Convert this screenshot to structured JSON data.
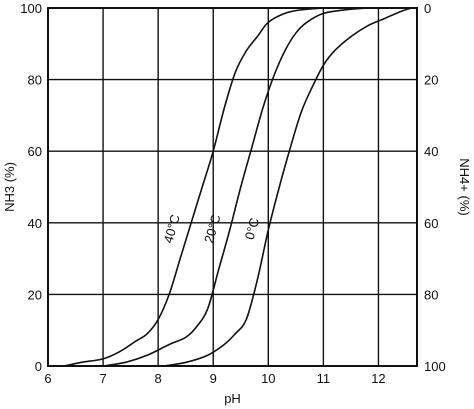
{
  "chart_data": {
    "type": "line",
    "xlabel": "pH",
    "ylabel": "NH3 (%)",
    "ylabel_right": "NH4+ (%)",
    "xlim": [
      6,
      12.7
    ],
    "ylim": [
      0,
      100
    ],
    "x_ticks": [
      6,
      7,
      8,
      9,
      10,
      11,
      12
    ],
    "y_ticks": [
      0,
      20,
      40,
      60,
      80,
      100
    ],
    "y_ticks_right": [
      100,
      80,
      60,
      40,
      20,
      0
    ],
    "grid": true,
    "series": [
      {
        "name": "40°C",
        "x": [
          6.3,
          6.6,
          7.0,
          7.3,
          7.6,
          7.8,
          8.0,
          8.2,
          8.4,
          8.6,
          8.8,
          9.0,
          9.2,
          9.4,
          9.6,
          9.8,
          10.0,
          10.3,
          10.6,
          11.0
        ],
        "y": [
          0,
          1,
          2,
          4,
          7,
          9,
          13,
          20,
          30,
          40,
          50,
          60,
          72,
          82,
          88,
          92,
          96,
          98.5,
          99.5,
          100
        ]
      },
      {
        "name": "20°C",
        "x": [
          7.0,
          7.4,
          7.8,
          8.2,
          8.5,
          8.7,
          8.9,
          9.1,
          9.3,
          9.5,
          9.7,
          9.9,
          10.1,
          10.3,
          10.5,
          10.7,
          11.0,
          11.4,
          11.8
        ],
        "y": [
          0,
          1,
          3,
          6,
          8,
          11,
          16,
          27,
          38,
          50,
          61,
          72,
          81,
          88,
          93,
          96,
          98.5,
          99.5,
          100
        ]
      },
      {
        "name": "0°C",
        "x": [
          8.1,
          8.5,
          8.9,
          9.2,
          9.4,
          9.6,
          9.8,
          10.0,
          10.2,
          10.4,
          10.6,
          10.8,
          11.0,
          11.2,
          11.5,
          11.8,
          12.1,
          12.4,
          12.6
        ],
        "y": [
          0,
          1,
          3,
          6,
          9,
          13,
          24,
          38,
          50,
          61,
          71,
          78,
          84,
          88,
          92,
          95,
          97,
          99,
          100
        ]
      }
    ]
  }
}
